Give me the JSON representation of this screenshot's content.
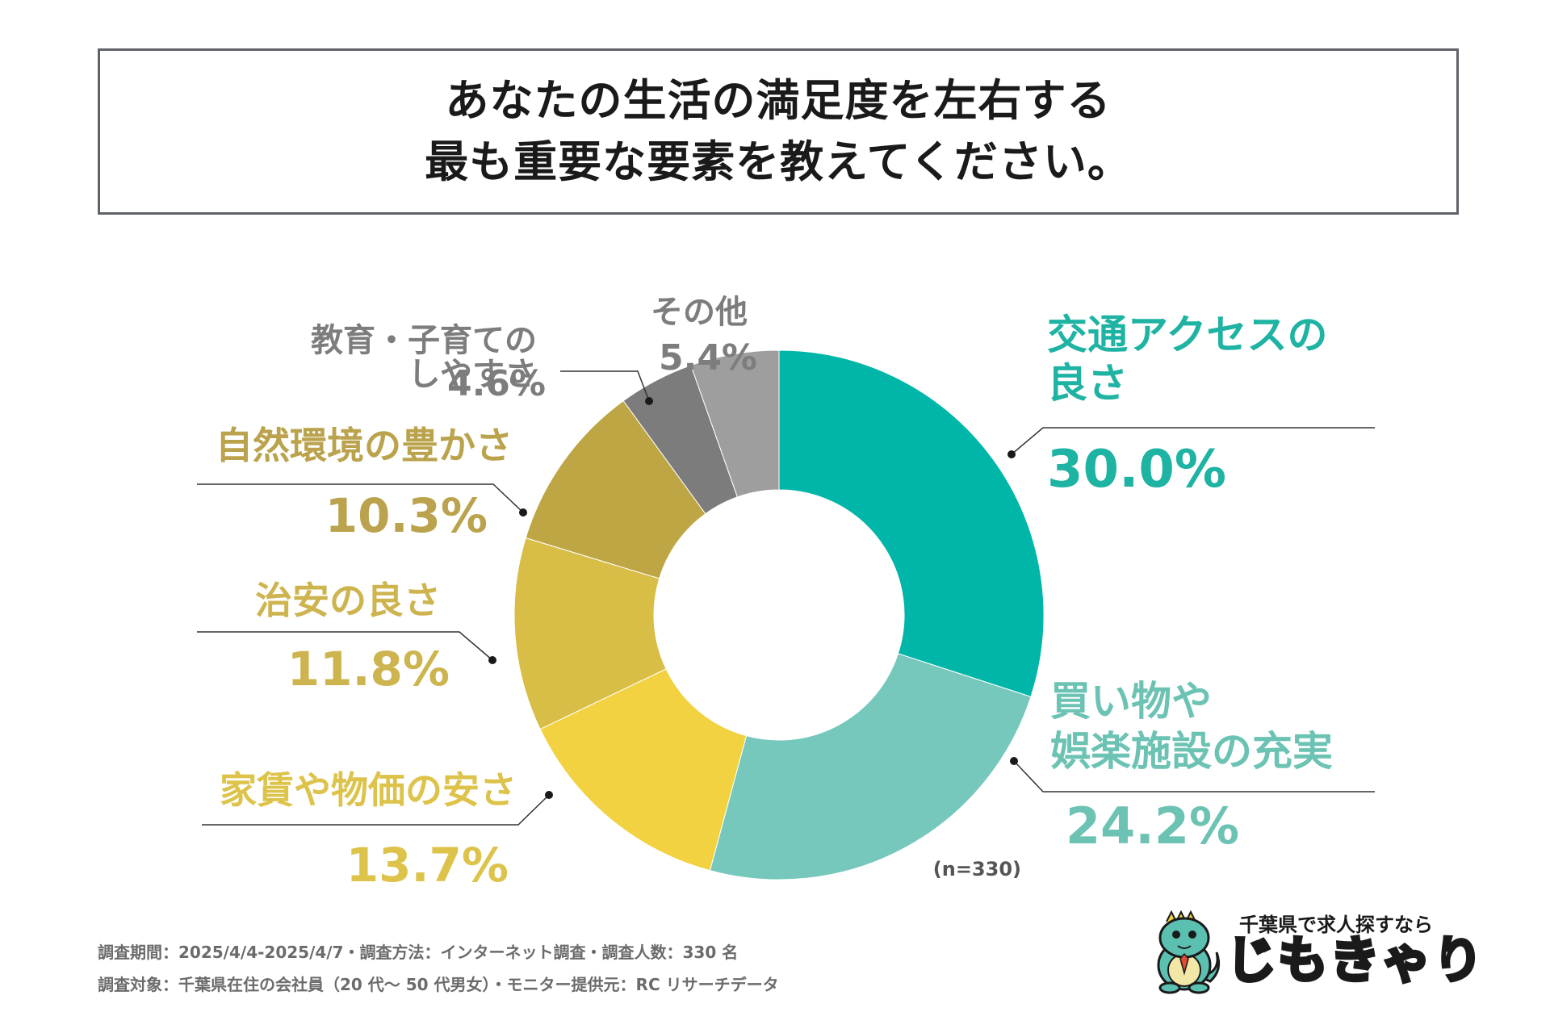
{
  "title": {
    "line1": "あなたの生活の満足度を左右する",
    "line2": "最も重要な要素を教えてください。"
  },
  "chart_data": {
    "type": "pie",
    "donut": true,
    "sample_note": "(n=330)",
    "slices": [
      {
        "label_lines": [
          "交通アクセスの",
          "良さ"
        ],
        "value": 30.0,
        "value_text": "30.0%",
        "color": "#00b6a8",
        "text_color": "#1eb3a3"
      },
      {
        "label_lines": [
          "買い物や",
          "娯楽施設の充実"
        ],
        "value": 24.2,
        "value_text": "24.2%",
        "color": "#75c8bb",
        "text_color": "#6cc3b3"
      },
      {
        "label_lines": [
          "家賃や物価の安さ"
        ],
        "value": 13.7,
        "value_text": "13.7%",
        "color": "#f2d240",
        "text_color": "#ddc34a"
      },
      {
        "label_lines": [
          "治安の良さ"
        ],
        "value": 11.8,
        "value_text": "11.8%",
        "color": "#d8bd46",
        "text_color": "#cdb44f"
      },
      {
        "label_lines": [
          "自然環境の豊かさ"
        ],
        "value": 10.3,
        "value_text": "10.3%",
        "color": "#bea645",
        "text_color": "#bba34d"
      },
      {
        "label_lines": [
          "教育・子育ての",
          "しやすさ"
        ],
        "value": 4.6,
        "value_text": "4.6%",
        "color": "#7c7c7c",
        "text_color": "#7d7d7d"
      },
      {
        "label_lines": [
          "その他"
        ],
        "value": 5.4,
        "value_text": "5.4%",
        "color": "#9e9e9e",
        "text_color": "#7d7d7d"
      }
    ]
  },
  "footer": {
    "line1": "調査期間：2025/4/4-2025/4/7・調査方法：インターネット調査・調査人数：330 名",
    "line2": "調査対象：千葉県在住の会社員（20 代〜 50 代男女）・モニター提供元：RC リサーチデータ"
  },
  "logo": {
    "tagline": "千葉県で求人探すなら",
    "name": "じもきゃり"
  }
}
